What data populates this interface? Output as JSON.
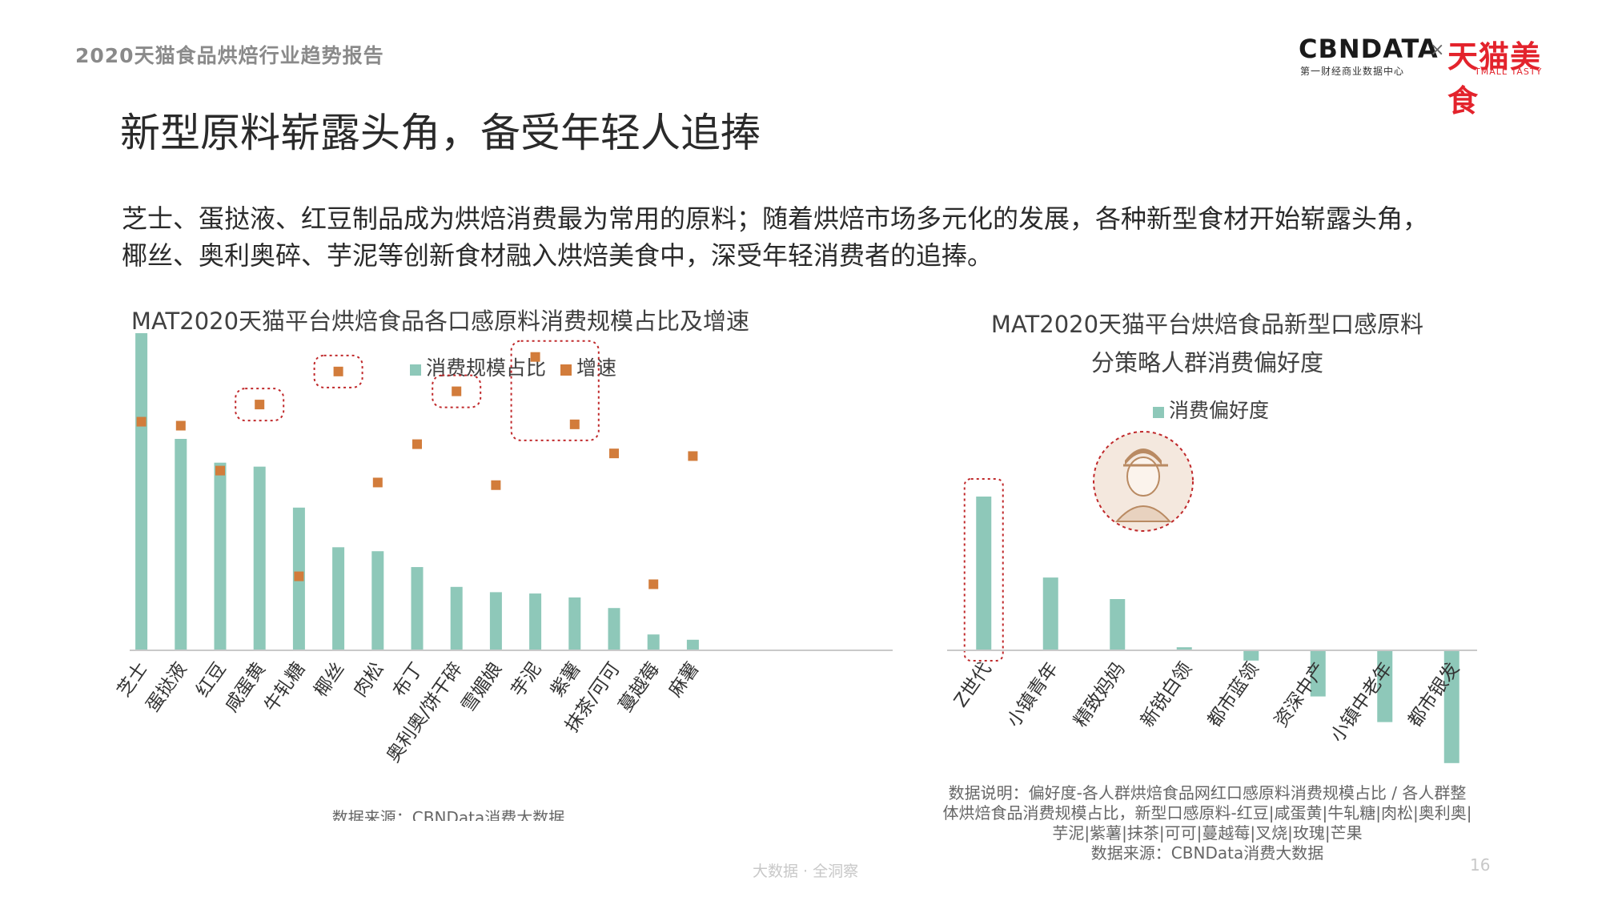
{
  "header": {
    "report_title": "2020天猫食品烘焙行业趋势报告",
    "logo": {
      "cbn": "CBNDATA",
      "cbn_sub": "第一财经商业数据中心",
      "times": "×",
      "tmall": "天猫美食",
      "tmall_sub": "TMALL TASTY"
    }
  },
  "headline": "新型原料崭露头角，备受年轻人追捧",
  "description": {
    "line1": "芝士、蛋挞液、红豆制品成为烘焙消费最为常用的原料；随着烘焙市场多元化的发展，各种新型食材开始崭露头角，",
    "line2": "椰丝、奥利奥碎、芋泥等创新食材融入烘焙美食中，深受年轻消费者的追捧。"
  },
  "colors": {
    "teal": "#8ec8b9",
    "orange": "#d27c3b",
    "highlight": "#c0292b",
    "axis": "#c9c9c9",
    "tick": "#333333"
  },
  "chart_data": [
    {
      "type": "bar",
      "title": "MAT2020天猫平台烘焙食品各口感原料消费规模占比及增速",
      "categories": [
        "芝士",
        "蛋挞液",
        "红豆",
        "咸蛋黄",
        "牛轧糖",
        "椰丝",
        "肉松",
        "布丁",
        "奥利奥/饼干碎",
        "雪媚娘",
        "芋泥",
        "紫薯",
        "抹茶/可可",
        "蔓越莓",
        "麻薯"
      ],
      "series": [
        {
          "name": "消费规模占比",
          "type": "bar",
          "color": "#8ec8b9",
          "values": [
            24,
            16,
            14.2,
            13.9,
            10.8,
            7.8,
            7.5,
            6.3,
            4.8,
            4.4,
            4.3,
            4.0,
            3.2,
            1.2,
            0.8
          ]
        },
        {
          "name": "增速",
          "type": "scatter",
          "color": "#d27c3b",
          "values": [
            17.3,
            17.0,
            13.6,
            18.6,
            5.6,
            21.1,
            12.7,
            15.6,
            19.6,
            12.5,
            22.2,
            17.1,
            14.9,
            5.0,
            14.7
          ]
        }
      ],
      "highlighted_categories": [
        "咸蛋黄",
        "椰丝",
        "奥利奥/饼干碎",
        "芋泥",
        "紫薯"
      ],
      "ylim": [
        0,
        26
      ],
      "source": "数据来源：CBNData消费大数据"
    },
    {
      "type": "bar",
      "title_line1": "MAT2020天猫平台烘焙食品新型口感原料",
      "title_line2": "分策略人群消费偏好度",
      "categories": [
        "Z世代",
        "小镇青年",
        "精致妈妈",
        "新锐白领",
        "都市蓝领",
        "资深中产",
        "小镇中老年",
        "都市银发"
      ],
      "series": [
        {
          "name": "消费偏好度",
          "color": "#8ec8b9",
          "values": [
            1.5,
            0.71,
            0.5,
            0.03,
            -0.1,
            -0.45,
            -0.7,
            -1.1
          ]
        }
      ],
      "highlighted_categories": [
        "Z世代"
      ],
      "ylim": [
        -1.2,
        1.7
      ],
      "note_lines": [
        "数据说明：偏好度-各人群烘焙食品网红口感原料消费规模占比 / 各人群整",
        "体烘焙食品消费规模占比，新型口感原料-红豆|咸蛋黄|牛轧糖|肉松|奥利奥|",
        "芋泥|紫薯|抹茶|可可|蔓越莓|叉烧|玫瑰|芒果",
        "数据来源：CBNData消费大数据"
      ]
    }
  ],
  "footer": {
    "slogan": "大数据 · 全洞察",
    "page_number": "16"
  }
}
